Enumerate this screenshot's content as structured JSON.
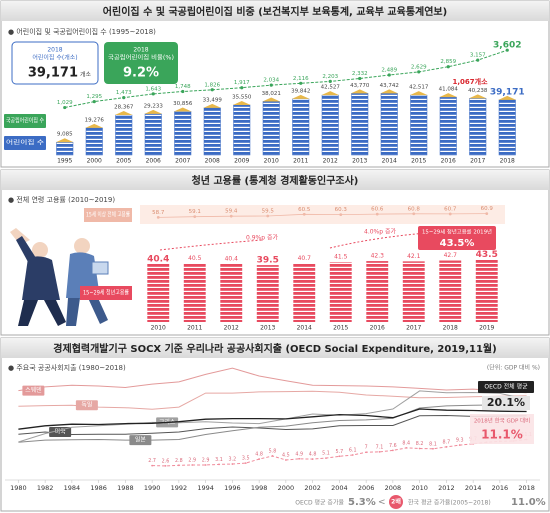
{
  "chart_data": [
    {
      "type": "bar",
      "title": "어린이집 수 및 국공립어린이집 비중 (보건복지부 보육통계, 교육부 교육통계연보)",
      "subtitle": "● 어린이집 및 국공립어린이집 수 (1995~2018)",
      "categories": [
        "1995",
        "2000",
        "2005",
        "2006",
        "2007",
        "2008",
        "2009",
        "2010",
        "2011",
        "2012",
        "2013",
        "2014",
        "2015",
        "2016",
        "2017",
        "2018"
      ],
      "series": [
        {
          "name": "어린이집 수",
          "color": "#3c6cc4",
          "values": [
            9085,
            19276,
            28367,
            29233,
            30856,
            33499,
            35550,
            38021,
            39842,
            42527,
            43770,
            43742,
            42517,
            41084,
            40238,
            39171
          ],
          "value_labels": [
            "9,085",
            "19,276",
            "28,367",
            "29,233",
            "30,856",
            "33,499",
            "35,550",
            "38,021",
            "39,842",
            "42,527",
            "43,770",
            "43,742",
            "42,517",
            "41,084",
            "40,238",
            "39,171"
          ]
        },
        {
          "name": "국공립어린이집 수",
          "color": "#3aa55a",
          "axis": "y2",
          "values": [
            1029,
            1295,
            1473,
            1643,
            1748,
            1826,
            1917,
            2034,
            2116,
            2203,
            2332,
            2489,
            2629,
            2859,
            3157,
            3602
          ],
          "value_labels": [
            "1,029",
            "1,295",
            "1,473",
            "1,643",
            "1,748",
            "1,826",
            "1,917",
            "2,034",
            "2,116",
            "2,203",
            "2,332",
            "2,489",
            "2,629",
            "2,859",
            "3,157",
            "3,602"
          ]
        }
      ],
      "ylim": [
        0,
        76000
      ],
      "y2lim": [
        -1100,
        3700
      ],
      "highlights": [
        {
          "year": "2018",
          "label": "어린이집 수(개소)",
          "unit": "개소"
        },
        {
          "year": "2018",
          "label": "국공립어린이집 비율(%)",
          "value": "9.2%"
        }
      ],
      "annotation": "1,067개소"
    },
    {
      "type": "bar",
      "title": "청년 고용률 (통계청 경제활동인구조사)",
      "subtitle": "● 전체 연령 고용률 (2010~2019)",
      "categories": [
        "2010",
        "2011",
        "2012",
        "2013",
        "2014",
        "2015",
        "2016",
        "2017",
        "2018",
        "2019"
      ],
      "series": [
        {
          "name": "15세 이상 전체 고용률",
          "color": "#f0b9a8",
          "axis": "y2",
          "values": [
            58.7,
            59.1,
            59.4,
            59.5,
            60.5,
            60.3,
            60.6,
            60.8,
            60.7,
            60.9
          ]
        },
        {
          "name": "15~29세 청년고용률",
          "color": "#e84a5f",
          "values": [
            40.4,
            40.5,
            40.4,
            39.5,
            40.7,
            41.5,
            42.3,
            42.1,
            42.7,
            43.5
          ]
        }
      ],
      "ylim": [
        0,
        50
      ],
      "y2lim": [
        56,
        63
      ],
      "annotations": [
        "0.9%p 증가",
        "4.0%p 증가"
      ],
      "callout": {
        "label": "15~29세 청년고용률 2019년",
        "value": "43.5%"
      }
    },
    {
      "type": "line",
      "title": "경제협력개발기구 SOCX 기준 우리나라 공공사회지출 (OECD Social Expenditure, 2019,11월)",
      "subtitle": "● 주요국 공공사회지출 (1980~2018)",
      "unit": "(단위: GDP 대비 %)",
      "xlim": [
        1979,
        2019
      ],
      "xticks": [
        1980,
        1982,
        1984,
        1986,
        1988,
        1990,
        1992,
        1994,
        1996,
        1998,
        2000,
        2002,
        2004,
        2006,
        2008,
        2010,
        2012,
        2014,
        2016,
        2018
      ],
      "ylim": [
        0,
        36
      ],
      "series": [
        {
          "name": "스웨덴",
          "color": "#e39a9a",
          "x": [
            1980,
            1982,
            1984,
            1986,
            1988,
            1990,
            1992,
            1994,
            1996,
            1998,
            2000,
            2002,
            2004,
            2006,
            2008,
            2010,
            2012,
            2014,
            2016,
            2018
          ],
          "values": [
            26.8,
            28.0,
            28.5,
            28.3,
            27.8,
            28.9,
            29.6,
            32.0,
            34.0,
            31.5,
            30.0,
            28.5,
            28.4,
            28.3,
            28.0,
            27.5,
            27.0,
            27.3,
            26.7,
            26.1
          ]
        },
        {
          "name": "독일",
          "color": "#e6a8a4",
          "x": [
            1980,
            1982,
            1984,
            1986,
            1988,
            1990,
            1992,
            1994,
            1996,
            1998,
            2000,
            2002,
            2004,
            2006,
            2008,
            2010,
            2012,
            2014,
            2016,
            2018
          ],
          "values": [
            21.8,
            22.0,
            22.1,
            21.5,
            21.3,
            20.8,
            21.5,
            26.0,
            26.0,
            26.4,
            26.5,
            26.6,
            26.3,
            25.4,
            25.0,
            24.5,
            24.6,
            24.8,
            25.0,
            25.1
          ]
        },
        {
          "name": "미국",
          "color": "#555555",
          "x": [
            1980,
            1982,
            1984,
            1986,
            1988,
            1990,
            1992,
            1994,
            1996,
            1998,
            2000,
            2002,
            2004,
            2006,
            2008,
            2010,
            2012,
            2014,
            2016,
            2018
          ],
          "values": [
            12.8,
            13.5,
            12.7,
            12.8,
            12.8,
            13.1,
            13.5,
            14.6,
            15.1,
            14.8,
            14.3,
            14.5,
            15.5,
            15.6,
            15.6,
            18.7,
            18.8,
            18.5,
            18.6,
            18.7
          ]
        },
        {
          "name": "일본",
          "color": "#8a8a8a",
          "x": [
            1980,
            1982,
            1984,
            1986,
            1988,
            1990,
            1992,
            1994,
            1996,
            1998,
            2000,
            2002,
            2004,
            2006,
            2008,
            2010,
            2012,
            2014,
            2016,
            2018
          ],
          "values": [
            10.2,
            10.9,
            11.0,
            11.1,
            10.9,
            10.9,
            11.1,
            12.7,
            13.9,
            15.0,
            15.4,
            16.5,
            17.2,
            17.4,
            17.9,
            21.2,
            21.9,
            22.1,
            22.2,
            22.3
          ]
        },
        {
          "name": "그리스",
          "color": "#a0a0a0",
          "x": [
            1980,
            1982,
            1984,
            1986,
            1988,
            1990,
            1992,
            1994,
            1996,
            1998,
            2000,
            2002,
            2004,
            2006,
            2008,
            2010,
            2012,
            2014,
            2016,
            2018
          ],
          "values": [
            10.3,
            13.0,
            15.0,
            15.5,
            16.0,
            16.6,
            16.5,
            16.8,
            16.4,
            16.2,
            17.7,
            19.3,
            18.9,
            19.4,
            20.9,
            26.7,
            26.1,
            26.2,
            25.9,
            24.0
          ]
        },
        {
          "color": "#222222",
          "x": [
            1980,
            1982,
            1984,
            1986,
            1988,
            1990,
            1992,
            1994,
            1996,
            1998,
            2000,
            2002,
            2004,
            2006,
            2008,
            2010,
            2012,
            2014,
            2016,
            2018
          ],
          "values": [
            14.4,
            15.5,
            16.0,
            15.9,
            16.2,
            16.3,
            16.8,
            17.6,
            17.8,
            17.8,
            17.7,
            18.4,
            19.1,
            18.8,
            18.1,
            20.9,
            20.5,
            20.4,
            20.2,
            20.1
          ]
        },
        {
          "color": "#f08a9a",
          "dashed": true,
          "x": [
            1990,
            1991,
            1992,
            1993,
            1994,
            1995,
            1996,
            1997,
            1998,
            1999,
            2000,
            2001,
            2002,
            2003,
            2004,
            2005,
            2006,
            2007,
            2008,
            2009,
            2010,
            2011,
            2012,
            2013,
            2014,
            2015,
            2016,
            2017,
            2018
          ],
          "values": [
            2.7,
            2.6,
            2.8,
            2.9,
            2.9,
            3.1,
            3.2,
            3.5,
            4.8,
            5.8,
            4.5,
            4.9,
            4.8,
            5.1,
            5.7,
            6.1,
            7.0,
            7.1,
            7.6,
            8.4,
            8.2,
            8.1,
            8.7,
            9.3,
            9.7,
            10.2,
            10.5,
            10.6,
            11.1
          ]
        }
      ],
      "callouts": [
        {
          "label": "OECD 전체 평균",
          "value": "20.1%"
        },
        {
          "label": "2018년 한국 GDP 대비",
          "value": "11.1%"
        }
      ],
      "footer": {
        "left_label": "OECD 평균 증가율",
        "left_value": "5.3%",
        "compare": "<",
        "ratio": "2배",
        "right_label": "한국 평균 증가율(2005~2018)",
        "right_value": "11.0%"
      }
    }
  ]
}
